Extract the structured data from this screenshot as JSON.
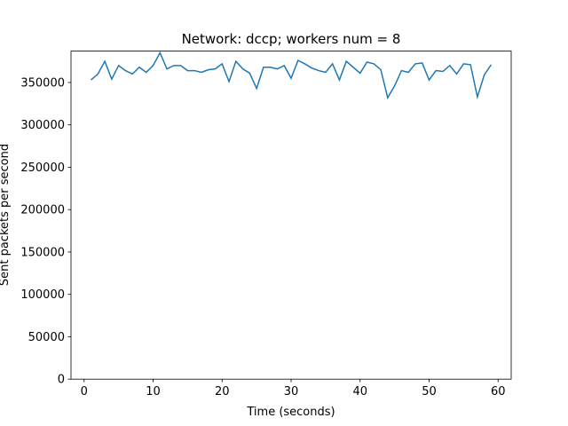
{
  "chart_data": {
    "type": "line",
    "title": "Network: dccp; workers num = 8",
    "x_label": "Time (seconds)",
    "y_label": "Sent packets per second",
    "x": [
      1,
      2,
      3,
      4,
      5,
      6,
      7,
      8,
      9,
      10,
      11,
      12,
      13,
      14,
      15,
      16,
      17,
      18,
      19,
      20,
      21,
      22,
      23,
      24,
      25,
      26,
      27,
      28,
      29,
      30,
      31,
      32,
      33,
      34,
      35,
      36,
      37,
      38,
      39,
      40,
      41,
      42,
      43,
      44,
      45,
      46,
      47,
      48,
      49,
      50,
      51,
      52,
      53,
      54,
      55,
      56,
      57,
      58,
      59
    ],
    "series": [
      {
        "name": "Sent packets per second",
        "color": "#1f77b4",
        "values": [
          353000,
          360000,
          375000,
          354000,
          370000,
          364000,
          360000,
          368000,
          362000,
          370000,
          385000,
          366000,
          370000,
          370000,
          364000,
          364000,
          362000,
          365000,
          366000,
          372000,
          351000,
          375000,
          366000,
          361000,
          343000,
          368000,
          368000,
          366000,
          370000,
          355000,
          376000,
          372000,
          367000,
          364000,
          362000,
          372000,
          353000,
          375000,
          368000,
          361000,
          374000,
          372000,
          365000,
          332000,
          346000,
          364000,
          362000,
          372000,
          373000,
          353000,
          364000,
          363000,
          370000,
          360000,
          372000,
          371000,
          333000,
          359000,
          371000
        ]
      }
    ],
    "xlim": [
      -1.9,
      61.9
    ],
    "ylim": [
      0,
      387000
    ],
    "xticks": [
      0,
      10,
      20,
      30,
      40,
      50,
      60
    ],
    "yticks": [
      0,
      50000,
      100000,
      150000,
      200000,
      250000,
      300000,
      350000
    ],
    "grid": false
  }
}
